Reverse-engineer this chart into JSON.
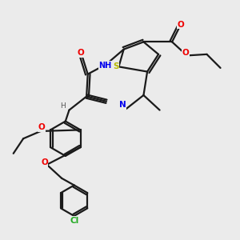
{
  "background_color": "#ebebeb",
  "bond_color": "#1a1a1a",
  "atom_colors": {
    "S": "#b8b800",
    "N": "#0000ee",
    "O": "#ee0000",
    "Cl": "#22aa22",
    "C": "#1a1a1a",
    "H": "#555555"
  },
  "figsize": [
    3.0,
    3.0
  ],
  "dpi": 100
}
